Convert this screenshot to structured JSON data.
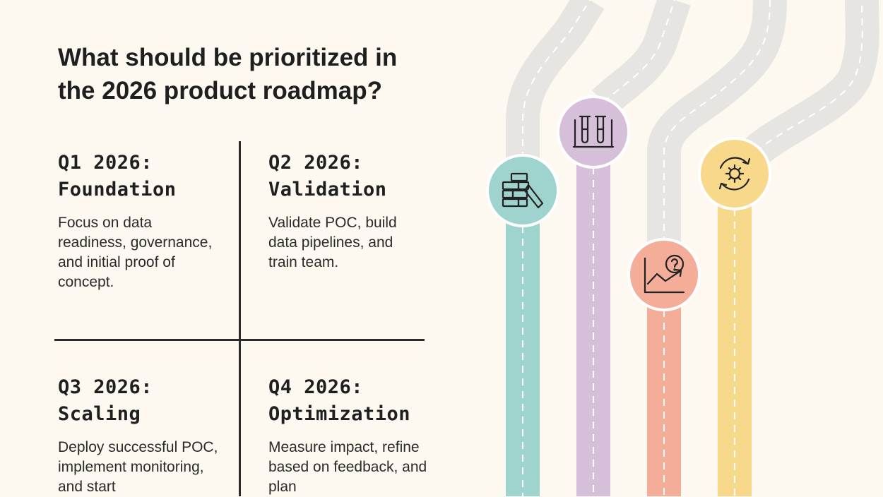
{
  "title_line1": "What should be prioritized in",
  "title_line2": "the 2026 product roadmap?",
  "quarters": [
    {
      "title_line1": "Q1 2026:",
      "title_line2": "Foundation",
      "desc": "Focus on data readiness, governance, and initial proof of concept.",
      "color": "#9fd3cd",
      "icon": "building-blocks-icon"
    },
    {
      "title_line1": "Q2 2026:",
      "title_line2": "Validation",
      "desc": "Validate POC, build data pipelines, and train team.",
      "color": "#d6bfd8",
      "icon": "test-tubes-icon"
    },
    {
      "title_line1": "Q3 2026:",
      "title_line2": "Scaling",
      "desc": "Deploy successful POC, implement monitoring, and start",
      "color": "#f3ad98",
      "icon": "chart-question-icon"
    },
    {
      "title_line1": "Q4 2026:",
      "title_line2": "Optimization",
      "desc": "Measure impact, refine based on feedback, and plan",
      "color": "#f8d98b",
      "icon": "gear-cycle-icon"
    }
  ],
  "road_color": "#e6e5e2"
}
